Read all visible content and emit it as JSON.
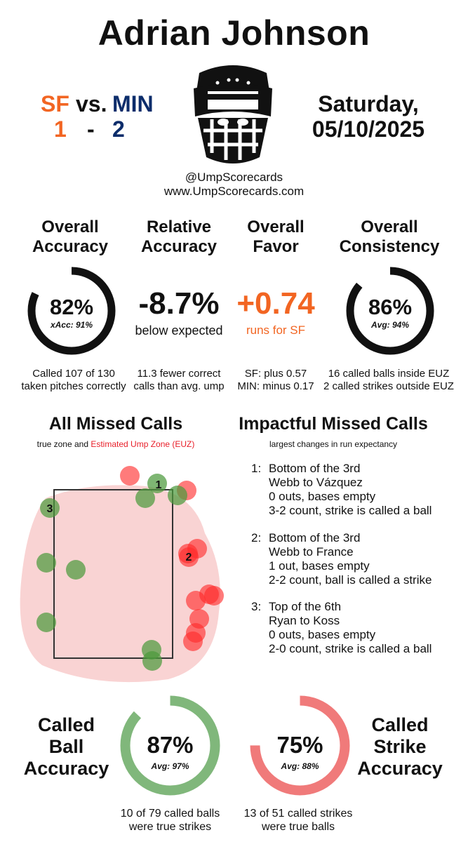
{
  "umpire_name": "Adrian Johnson",
  "matchup": {
    "away_team": "SF",
    "vs_label": "vs.",
    "home_team": "MIN",
    "away_score": "1",
    "dash": "-",
    "home_score": "2"
  },
  "date": {
    "day": "Saturday,",
    "date": "05/10/2025"
  },
  "credits": {
    "handle": "@UmpScorecards",
    "website": "www.UmpScorecards.com"
  },
  "colors": {
    "sf": "#f26522",
    "min": "#0c2d6b",
    "ball_green": "#6aaa64",
    "strike_red": "#ee6b6b",
    "euz_red": "#e8202a"
  },
  "icons": [
    "umpire-mask-icon"
  ],
  "stats": {
    "overall_accuracy": {
      "title_line1": "Overall",
      "title_line2": "Accuracy",
      "value": "82%",
      "sub": "xAcc: 91%",
      "fill": 0.82,
      "desc_line1": "Called 107 of 130",
      "desc_line2": "taken pitches correctly"
    },
    "relative_accuracy": {
      "title_line1": "Relative",
      "title_line2": "Accuracy",
      "value": "-8.7%",
      "sub": "below expected",
      "desc_line1": "11.3 fewer correct",
      "desc_line2": "calls than avg. ump"
    },
    "overall_favor": {
      "title_line1": "Overall",
      "title_line2": "Favor",
      "value": "+0.74",
      "sub": "runs for SF",
      "desc_line1": "SF: plus 0.57",
      "desc_line2": "MIN: minus 0.17"
    },
    "overall_consistency": {
      "title_line1": "Overall",
      "title_line2": "Consistency",
      "value": "86%",
      "sub": "Avg: 94%",
      "fill": 0.86,
      "desc_line1": "16 called balls inside EUZ",
      "desc_line2": "2 called strikes outside EUZ"
    }
  },
  "missed_calls": {
    "title": "All Missed Calls",
    "legend_prefix": "true zone and",
    "legend_euz": "Estimated Ump Zone (EUZ)",
    "labels": [
      "1",
      "2",
      "3"
    ]
  },
  "impactful": {
    "title": "Impactful Missed Calls",
    "subtitle": "largest changes in run expectancy",
    "items": [
      {
        "num": "1:",
        "inning": "Bottom of the 3rd",
        "matchup": "Webb to Vázquez",
        "situation": "0 outs, bases empty",
        "result": "3-2 count, strike is called a ball"
      },
      {
        "num": "2:",
        "inning": "Bottom of the 3rd",
        "matchup": "Webb to France",
        "situation": "1 out, bases empty",
        "result": "2-2 count, ball is called a strike"
      },
      {
        "num": "3:",
        "inning": "Top of the 6th",
        "matchup": "Ryan to Koss",
        "situation": "0 outs, bases empty",
        "result": "2-0 count, strike is called a ball"
      }
    ]
  },
  "called_ball": {
    "title_line1": "Called",
    "title_line2": "Ball",
    "title_line3": "Accuracy",
    "value": "87%",
    "sub": "Avg: 97%",
    "fill": 0.87,
    "desc_line1": "10 of 79 called balls",
    "desc_line2": "were true strikes"
  },
  "called_strike": {
    "title_line1": "Called",
    "title_line2": "Strike",
    "title_line3": "Accuracy",
    "value": "75%",
    "sub": "Avg: 88%",
    "fill": 0.75,
    "desc_line1": "13 of 51 called strikes",
    "desc_line2": "were true balls"
  }
}
